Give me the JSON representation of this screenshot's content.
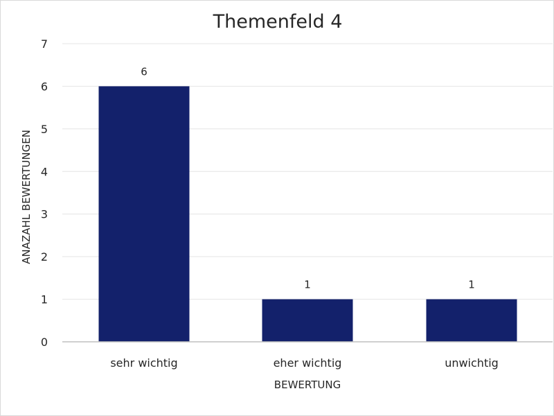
{
  "chart_data": {
    "type": "bar",
    "title": "Themenfeld 4",
    "xlabel": "BEWERTUNG",
    "ylabel": "ANAZAHL BEWERTUNGEN",
    "categories": [
      "sehr wichtig",
      "eher wichtig",
      "unwichtig"
    ],
    "values": [
      6,
      1,
      1
    ],
    "data_labels": [
      "6",
      "1",
      "1"
    ],
    "ylim": [
      0,
      7
    ],
    "yticks": [
      "0",
      "1",
      "2",
      "3",
      "4",
      "5",
      "6",
      "7"
    ],
    "grid": true,
    "legend": "none",
    "bar_color": "#13216b"
  }
}
